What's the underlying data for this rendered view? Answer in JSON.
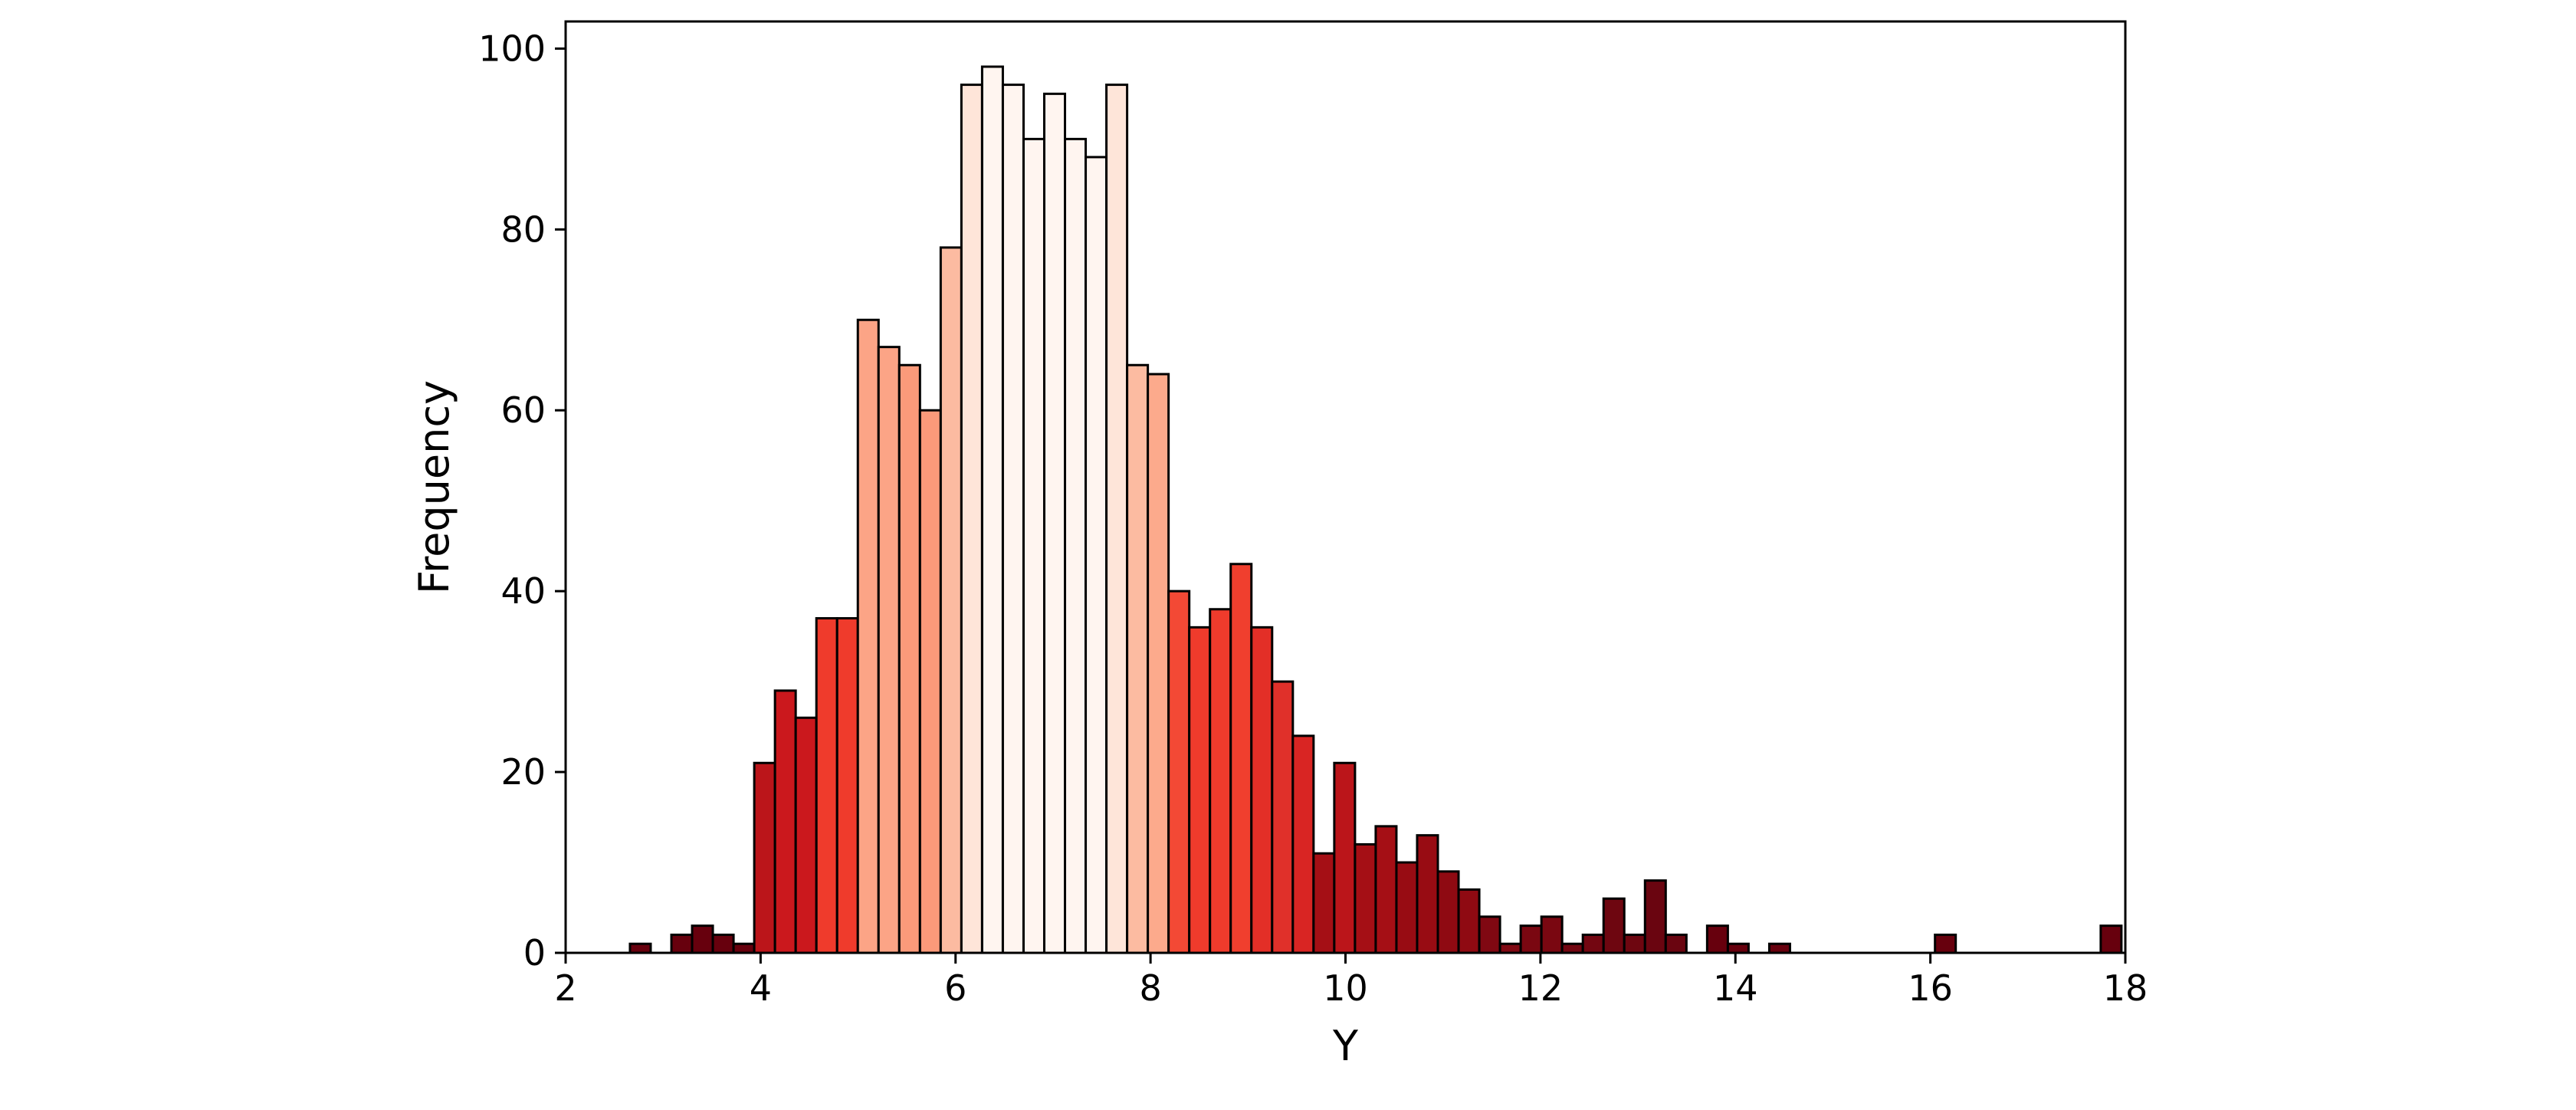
{
  "chart_data": {
    "type": "bar",
    "subtype": "histogram",
    "title": "",
    "xlabel": "Y",
    "ylabel": "Frequency",
    "xlim": [
      2,
      18
    ],
    "ylim": [
      0,
      103
    ],
    "xticks": [
      2,
      4,
      6,
      8,
      10,
      12,
      14,
      16,
      18
    ],
    "yticks": [
      0,
      20,
      40,
      60,
      80,
      100
    ],
    "grid": false,
    "legend": "none",
    "colormap": "Reds (reversed by distance from center)",
    "bin_start": 2.66,
    "bin_width": 0.2125,
    "values": [
      1,
      0,
      2,
      3,
      2,
      1,
      21,
      29,
      26,
      37,
      37,
      70,
      67,
      65,
      60,
      78,
      96,
      98,
      96,
      90,
      95,
      90,
      88,
      96,
      65,
      64,
      40,
      36,
      38,
      43,
      36,
      30,
      24,
      11,
      21,
      12,
      14,
      10,
      13,
      9,
      7,
      4,
      1,
      3,
      4,
      1,
      2,
      6,
      2,
      8,
      2,
      0,
      3,
      1,
      0,
      1,
      0,
      0,
      0,
      0,
      0,
      0,
      0,
      2,
      0,
      0,
      0,
      0,
      0,
      0,
      0,
      3
    ],
    "bar_colors": [
      "#67000d",
      "#67000d",
      "#67000d",
      "#67000d",
      "#67000d",
      "#67000d",
      "#bb151a",
      "#cb181d",
      "#cb181d",
      "#ef3b2c",
      "#ef3b2c",
      "#fca486",
      "#fca486",
      "#fb9a7a",
      "#fb9a7a",
      "#fcbba1",
      "#fee5d9",
      "#fff5f0",
      "#fff5f0",
      "#fff5f0",
      "#fff5f0",
      "#fff5f0",
      "#fff5f0",
      "#fee5d9",
      "#fcbba1",
      "#fcaa8c",
      "#f34935",
      "#ef3b2c",
      "#ef3b2c",
      "#f03f2e",
      "#e32f27",
      "#e0302a",
      "#d92523",
      "#a50f15",
      "#bb151a",
      "#a50f15",
      "#a50f15",
      "#980c13",
      "#980c13",
      "#8f0a12",
      "#8f0a12",
      "#800812",
      "#800812",
      "#7a0711",
      "#7a0711",
      "#730611",
      "#730611",
      "#6e0610",
      "#6e0610",
      "#6a0510",
      "#6a0510",
      "#67000d",
      "#67000d",
      "#67000d",
      "#67000d",
      "#67000d",
      "#67000d",
      "#67000d",
      "#67000d",
      "#67000d",
      "#67000d",
      "#67000d",
      "#67000d",
      "#67000d",
      "#67000d",
      "#67000d",
      "#67000d",
      "#67000d",
      "#67000d",
      "#67000d",
      "#67000d",
      "#67000d"
    ]
  }
}
